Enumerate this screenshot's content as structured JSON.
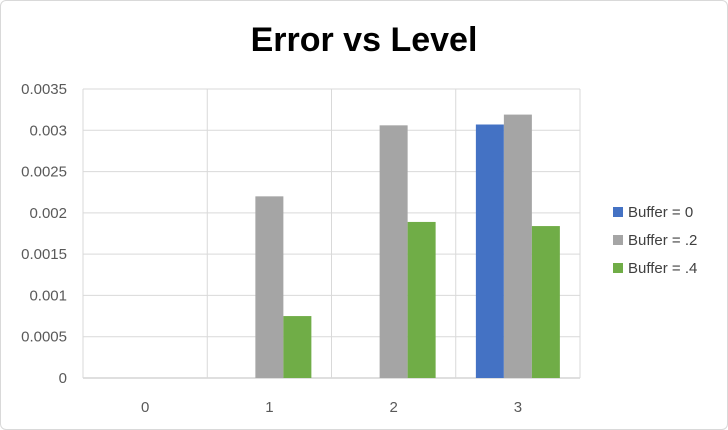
{
  "chart_data": {
    "type": "bar",
    "title": "Error vs Level",
    "xlabel": "",
    "ylabel": "",
    "categories": [
      "0",
      "1",
      "2",
      "3"
    ],
    "series": [
      {
        "name": "Buffer = 0",
        "color": "#4472c4",
        "values": [
          0,
          0,
          0,
          0.00307
        ]
      },
      {
        "name": "Buffer = .2",
        "color": "#a5a5a5",
        "values": [
          0,
          0.0022,
          0.00306,
          0.00319
        ]
      },
      {
        "name": "Buffer = .4",
        "color": "#70ad47",
        "values": [
          0,
          0.00075,
          0.00189,
          0.00184
        ]
      }
    ],
    "ylim": [
      0,
      0.0035
    ],
    "yticks": [
      "0",
      "0.0005",
      "0.001",
      "0.0015",
      "0.002",
      "0.0025",
      "0.003",
      "0.0035"
    ],
    "grid": true,
    "legend_position": "right"
  }
}
